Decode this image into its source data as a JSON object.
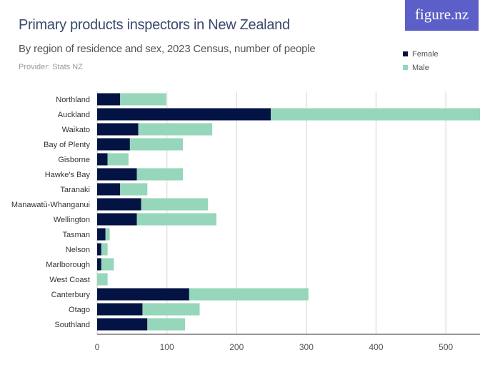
{
  "title": "Primary products inspectors in New Zealand",
  "subtitle": "By region of residence and sex, 2023 Census, number of people",
  "provider": "Provider: Stats NZ",
  "logo": "figure.nz",
  "chart_data": {
    "type": "bar",
    "orientation": "horizontal",
    "stacked": true,
    "categories": [
      "Northland",
      "Auckland",
      "Waikato",
      "Bay of Plenty",
      "Gisborne",
      "Hawke's Bay",
      "Taranaki",
      "Manawatū-Whanganui",
      "Wellington",
      "Tasman",
      "Nelson",
      "Marlborough",
      "West Coast",
      "Canterbury",
      "Otago",
      "Southland"
    ],
    "series": [
      {
        "name": "Female",
        "color": "#031344",
        "values": [
          33,
          249,
          59,
          47,
          15,
          57,
          33,
          63,
          57,
          12,
          6,
          6,
          0,
          132,
          65,
          72
        ]
      },
      {
        "name": "Male",
        "color": "#96d6ba",
        "values": [
          66,
          300,
          106,
          76,
          30,
          66,
          39,
          96,
          114,
          6,
          9,
          18,
          15,
          171,
          82,
          54
        ]
      }
    ],
    "xlim": [
      0,
      549
    ],
    "xticks": [
      "0",
      "100",
      "200",
      "300",
      "400",
      "500"
    ],
    "grid": true,
    "legend_position": "top-right"
  }
}
